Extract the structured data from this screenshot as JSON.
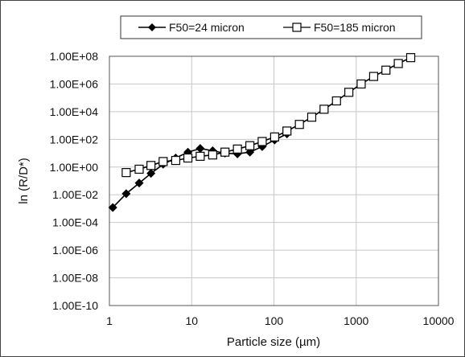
{
  "chart_data": {
    "type": "scatter",
    "xlabel": "Particle size (µm)",
    "ylabel": "ln (R/D*)",
    "x_scale": "log",
    "y_scale": "log",
    "xlim": [
      1,
      10000
    ],
    "ylim": [
      1e-10,
      100000000.0
    ],
    "x_ticks": [
      1,
      10,
      100,
      1000,
      10000
    ],
    "x_tick_labels": [
      "1",
      "10",
      "100",
      "1000",
      "10000"
    ],
    "y_ticks": [
      1e-10,
      1e-08,
      1e-06,
      0.0001,
      0.01,
      1,
      100.0,
      10000.0,
      1000000.0,
      100000000.0
    ],
    "y_tick_labels": [
      "1.00E-10",
      "1.00E-08",
      "1.00E-06",
      "1.00E-04",
      "1.00E-02",
      "1.00E+00",
      "1.00E+02",
      "1.00E+04",
      "1.00E+06",
      "1.00E+08"
    ],
    "grid": "major vertical and horizontal",
    "legend_position": "top",
    "series": [
      {
        "name": "F50=24 micron",
        "marker": "filled-diamond",
        "color": "#000000",
        "x": [
          1.1,
          1.6,
          2.3,
          3.2,
          4.5,
          6.4,
          9.0,
          12.7,
          18.0,
          25.4,
          36.0,
          51.0,
          72.0,
          102.0,
          144.0
        ],
        "y": [
          0.0012,
          0.012,
          0.07,
          0.35,
          1.6,
          4.5,
          12.0,
          22.0,
          15.0,
          10.0,
          9.0,
          12.0,
          30.0,
          90.0,
          250.0
        ]
      },
      {
        "name": "F50=185 micron",
        "marker": "open-square",
        "color": "#000000",
        "x": [
          1.6,
          2.3,
          3.2,
          4.5,
          6.4,
          9.0,
          12.7,
          18.0,
          25.4,
          36.0,
          51.0,
          72.0,
          102.0,
          144.0,
          204.0,
          288.0,
          407.0,
          576.0,
          814.0,
          1150.0,
          1630.0,
          2300.0,
          3250.0,
          4600.0
        ],
        "y": [
          0.4,
          0.7,
          1.3,
          2.5,
          3.0,
          4.5,
          6.0,
          7.5,
          12.0,
          20.0,
          35.0,
          70.0,
          150.0,
          400.0,
          1200.0,
          4000.0,
          15000.0,
          60000.0,
          250000.0,
          1000000.0,
          3500000.0,
          10000000.0,
          30000000.0,
          80000000.0
        ]
      }
    ]
  }
}
